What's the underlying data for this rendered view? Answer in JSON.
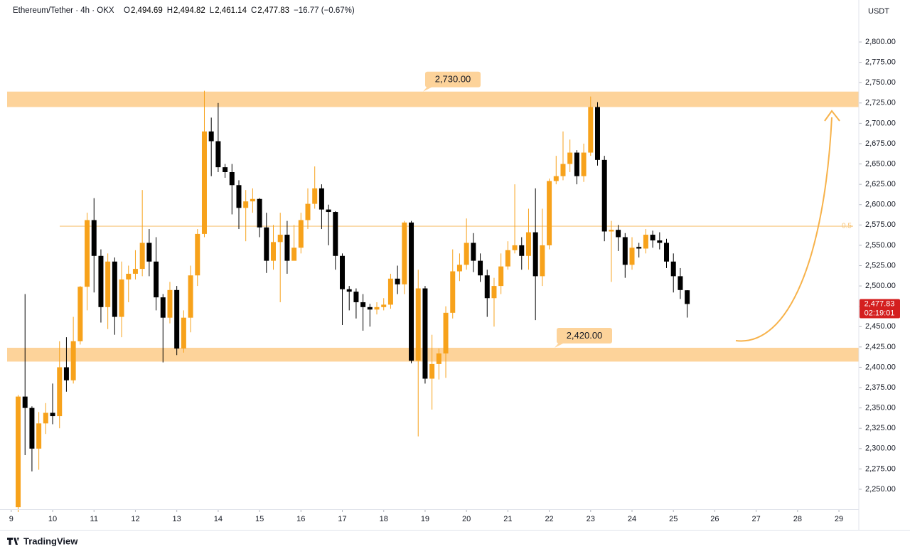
{
  "chart_data": {
    "type": "candlestick",
    "header": {
      "symbol": "Ethereum/Tether · 4h · OKX",
      "ohlc": [
        {
          "key": "O",
          "value": "2,494.69"
        },
        {
          "key": "H",
          "value": "2,494.82"
        },
        {
          "key": "L",
          "value": "2,461.14"
        },
        {
          "key": "C",
          "value": "2,477.83"
        }
      ],
      "change": "−16.77 (−0.67%)"
    },
    "currency": "USDT",
    "brand": "TradingView",
    "up_color": "#f7a21b",
    "down_color": "#000000",
    "x": [
      9.1667,
      9.3333,
      9.5,
      9.6667,
      9.8333,
      10,
      10.1667,
      10.3333,
      10.5,
      10.6667,
      10.8333,
      11,
      11.1667,
      11.3333,
      11.5,
      11.6667,
      11.8333,
      12,
      12.1667,
      12.3333,
      12.5,
      12.6667,
      12.8333,
      13,
      13.1667,
      13.3333,
      13.5,
      13.6667,
      13.8333,
      14,
      14.1667,
      14.3333,
      14.5,
      14.6667,
      14.8333,
      15,
      15.1667,
      15.3333,
      15.5,
      15.6667,
      15.8333,
      16,
      16.1667,
      16.3333,
      16.5,
      16.6667,
      16.8333,
      17,
      17.1667,
      17.3333,
      17.5,
      17.6667,
      17.8333,
      18,
      18.1667,
      18.3333,
      18.5,
      18.6667,
      18.8333,
      19,
      19.1667,
      19.3333,
      19.5,
      19.6667,
      19.8333,
      20,
      20.1667,
      20.3333,
      20.5,
      20.6667,
      20.8333,
      21,
      21.1667,
      21.3333,
      21.5,
      21.6667,
      21.8333,
      22,
      22.1667,
      22.3333,
      22.5,
      22.6667,
      22.8333,
      23,
      23.1667,
      23.3333,
      23.5,
      23.6667,
      23.8333,
      24,
      24.1667,
      24.3333,
      24.5,
      24.6667,
      24.8333,
      25,
      25.1667,
      25.3333
    ],
    "open": [
      2228,
      2364,
      2350,
      2300,
      2331,
      2344,
      2340,
      2400,
      2384,
      2432,
      2499,
      2581,
      2537,
      2474,
      2530,
      2462,
      2508,
      2515,
      2521,
      2553,
      2530,
      2486,
      2461,
      2495,
      2423,
      2461,
      2513,
      2564,
      2690,
      2678,
      2646,
      2640,
      2624,
      2596,
      2604,
      2607,
      2572,
      2531,
      2554,
      2563,
      2531,
      2547,
      2581,
      2601,
      2620,
      2594,
      2591,
      2537,
      2496,
      2493,
      2480,
      2474,
      2471,
      2474,
      2477,
      2509,
      2502,
      2578,
      2408,
      2497,
      2386,
      2404,
      2417,
      2467,
      2518,
      2526,
      2553,
      2531,
      2513,
      2485,
      2500,
      2524,
      2544,
      2550,
      2537,
      2566,
      2512,
      2550,
      2629,
      2635,
      2650,
      2664,
      2635,
      2664,
      2720,
      2655,
      2567,
      2569,
      2560,
      2526,
      2548,
      2546,
      2563,
      2556,
      2553,
      2530,
      2512,
      2494.69
    ],
    "high": [
      2366,
      2490,
      2352,
      2345,
      2356,
      2380,
      2432,
      2437,
      2462,
      2500,
      2590,
      2608,
      2545,
      2540,
      2535,
      2530,
      2525,
      2544,
      2618,
      2570,
      2560,
      2490,
      2505,
      2500,
      2470,
      2525,
      2570,
      2740,
      2707,
      2725,
      2650,
      2650,
      2630,
      2618,
      2620,
      2608,
      2590,
      2575,
      2590,
      2580,
      2575,
      2590,
      2620,
      2647,
      2625,
      2600,
      2592,
      2540,
      2500,
      2497,
      2490,
      2478,
      2480,
      2485,
      2515,
      2525,
      2580,
      2580,
      2520,
      2500,
      2440,
      2423,
      2475,
      2545,
      2540,
      2583,
      2565,
      2540,
      2520,
      2510,
      2540,
      2555,
      2625,
      2560,
      2595,
      2620,
      2595,
      2632,
      2660,
      2690,
      2680,
      2667,
      2675,
      2733,
      2726,
      2660,
      2580,
      2575,
      2565,
      2560,
      2553,
      2570,
      2568,
      2566,
      2558,
      2540,
      2522,
      2494.82
    ],
    "low": [
      2222,
      2292,
      2272,
      2274,
      2318,
      2330,
      2325,
      2370,
      2380,
      2428,
      2470,
      2492,
      2455,
      2447,
      2440,
      2437,
      2480,
      2508,
      2512,
      2512,
      2470,
      2406,
      2454,
      2415,
      2418,
      2443,
      2500,
      2560,
      2635,
      2640,
      2633,
      2588,
      2570,
      2555,
      2590,
      2560,
      2516,
      2520,
      2480,
      2515,
      2535,
      2540,
      2570,
      2595,
      2570,
      2550,
      2520,
      2452,
      2470,
      2460,
      2445,
      2450,
      2465,
      2470,
      2472,
      2490,
      2490,
      2405,
      2315,
      2380,
      2348,
      2385,
      2387,
      2460,
      2506,
      2520,
      2517,
      2505,
      2462,
      2450,
      2490,
      2520,
      2540,
      2520,
      2520,
      2458,
      2500,
      2545,
      2625,
      2630,
      2640,
      2625,
      2628,
      2660,
      2648,
      2555,
      2505,
      2543,
      2510,
      2520,
      2535,
      2540,
      2547,
      2545,
      2522,
      2492,
      2484,
      2461.14
    ],
    "close": [
      2364,
      2350,
      2300,
      2331,
      2344,
      2340,
      2400,
      2384,
      2432,
      2499,
      2581,
      2537,
      2474,
      2530,
      2462,
      2508,
      2515,
      2521,
      2553,
      2530,
      2486,
      2461,
      2495,
      2423,
      2461,
      2513,
      2564,
      2690,
      2678,
      2646,
      2640,
      2624,
      2596,
      2604,
      2607,
      2572,
      2531,
      2554,
      2563,
      2531,
      2547,
      2581,
      2601,
      2620,
      2594,
      2591,
      2537,
      2496,
      2493,
      2480,
      2474,
      2471,
      2474,
      2477,
      2509,
      2502,
      2578,
      2408,
      2497,
      2386,
      2404,
      2417,
      2467,
      2518,
      2526,
      2553,
      2531,
      2513,
      2485,
      2500,
      2524,
      2544,
      2550,
      2537,
      2566,
      2512,
      2550,
      2629,
      2635,
      2650,
      2664,
      2635,
      2664,
      2720,
      2655,
      2567,
      2569,
      2560,
      2526,
      2547,
      2546,
      2563,
      2556,
      2553,
      2530,
      2512,
      2495,
      2477.83
    ],
    "xlim": [
      8.9,
      29.48
    ],
    "xticks": [
      9,
      10,
      11,
      12,
      13,
      14,
      15,
      16,
      17,
      18,
      19,
      20,
      21,
      22,
      23,
      24,
      25,
      26,
      27,
      28,
      29
    ],
    "ylim": [
      2225.5,
      2849
    ],
    "yticks": [
      {
        "value": 2250,
        "label": "2,250.00"
      },
      {
        "value": 2275,
        "label": "2,275.00"
      },
      {
        "value": 2300,
        "label": "2,300.00"
      },
      {
        "value": 2325,
        "label": "2,325.00"
      },
      {
        "value": 2350,
        "label": "2,350.00"
      },
      {
        "value": 2375,
        "label": "2,375.00"
      },
      {
        "value": 2400,
        "label": "2,400.00"
      },
      {
        "value": 2425,
        "label": "2,425.00"
      },
      {
        "value": 2450,
        "label": "2,450.00"
      },
      {
        "value": 2475,
        "label": "2,475.00"
      },
      {
        "value": 2500,
        "label": "2,500.00"
      },
      {
        "value": 2525,
        "label": "2,525.00"
      },
      {
        "value": 2550,
        "label": "2,550.00"
      },
      {
        "value": 2575,
        "label": "2,575.00"
      },
      {
        "value": 2600,
        "label": "2,600.00"
      },
      {
        "value": 2625,
        "label": "2,625.00"
      },
      {
        "value": 2650,
        "label": "2,650.00"
      },
      {
        "value": 2675,
        "label": "2,675.00"
      },
      {
        "value": 2700,
        "label": "2,700.00"
      },
      {
        "value": 2725,
        "label": "2,725.00"
      },
      {
        "value": 2750,
        "label": "2,750.00"
      },
      {
        "value": 2775,
        "label": "2,775.00"
      },
      {
        "value": 2800,
        "label": "2,800.00"
      }
    ],
    "zones": [
      {
        "label": "2,730.00",
        "low": 2720,
        "high": 2739,
        "color": "#fdd39a"
      },
      {
        "label": "2,420.00",
        "low": 2407,
        "high": 2424,
        "color": "#fdd39a"
      }
    ],
    "level": {
      "value": 2573.5,
      "label": "0.5",
      "color": "#f7c57a"
    },
    "price_tag": {
      "label": "2,477.83",
      "countdown": "02:19:01",
      "color": "#d41f1f"
    }
  }
}
